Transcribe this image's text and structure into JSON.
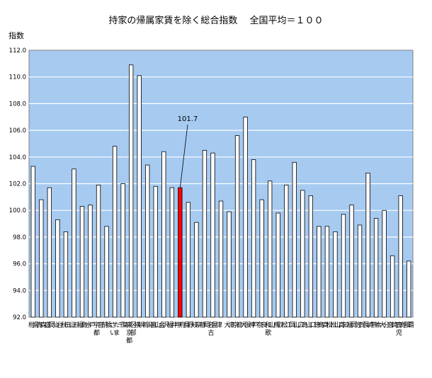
{
  "chart_data": {
    "type": "bar",
    "title": "持家の帰属家賃を除く総合指数　 全国平均＝１００",
    "ylabel": "指数",
    "xlabel": "",
    "ylim": [
      92.0,
      112.0
    ],
    "ytick_step": 2.0,
    "yticks": [
      "92.0",
      "94.0",
      "96.0",
      "98.0",
      "100.0",
      "102.0",
      "104.0",
      "106.0",
      "108.0",
      "110.0",
      "112.0"
    ],
    "grid": true,
    "categories": [
      "札幌",
      "青森",
      "盛岡",
      "仙台",
      "秋田",
      "山形",
      "福島",
      "水戸",
      "宇都宮",
      "前橋",
      "さいたま",
      "千葉",
      "東京都区部",
      "横浜",
      "新潟",
      "富山",
      "金沢",
      "福井",
      "甲府",
      "長野",
      "岐阜",
      "静岡",
      "名古屋",
      "津",
      "大津",
      "京都",
      "大阪",
      "神戸",
      "奈良",
      "和歌山",
      "鳥取",
      "松江",
      "岡山",
      "広島",
      "山口",
      "徳島",
      "高松",
      "松山",
      "高知",
      "福岡",
      "佐賀",
      "長崎",
      "熊本",
      "大分",
      "宮崎",
      "鹿児島",
      "那覇"
    ],
    "values": [
      103.3,
      100.8,
      101.7,
      99.3,
      98.4,
      103.1,
      100.3,
      100.4,
      101.9,
      98.8,
      104.8,
      102.0,
      110.9,
      110.1,
      103.4,
      101.8,
      104.4,
      101.7,
      101.7,
      100.6,
      99.1,
      104.5,
      104.3,
      100.7,
      99.9,
      105.6,
      107.0,
      103.8,
      100.8,
      102.2,
      99.8,
      101.9,
      103.6,
      101.5,
      101.1,
      98.8,
      98.8,
      98.4,
      99.7,
      100.4,
      98.9,
      102.8,
      99.4,
      100.0,
      96.6,
      101.1,
      96.2
    ],
    "highlight_category": "甲府",
    "annotation": "101.7",
    "colors": {
      "plot_background": "#a6caf0",
      "bar_fill": "#ffffff",
      "highlight_fill": "#ff0000",
      "grid": "#ffffff",
      "bar_stroke": "#000000"
    }
  }
}
